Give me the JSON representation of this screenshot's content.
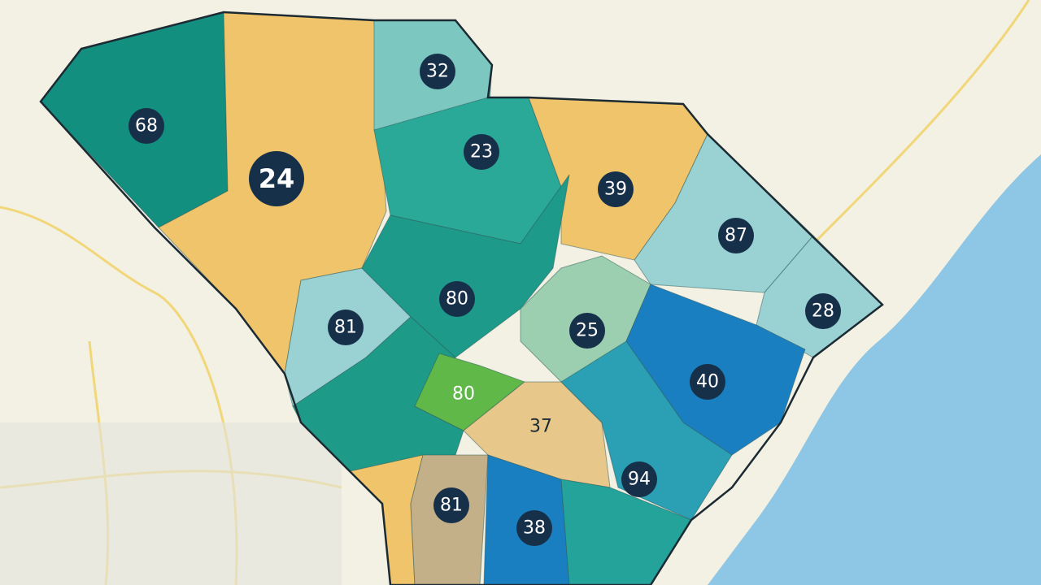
{
  "regions": [
    {
      "label": 68
    },
    {
      "label": 24
    },
    {
      "label": 32
    },
    {
      "label": 23
    },
    {
      "label": 39
    },
    {
      "label": 87
    },
    {
      "label": 28
    },
    {
      "label": 81
    },
    {
      "label": 80
    },
    {
      "label": 25
    },
    {
      "label": 40
    },
    {
      "label": 80
    },
    {
      "label": 37
    },
    {
      "label": 94
    },
    {
      "label": 81
    },
    {
      "label": 38
    }
  ]
}
